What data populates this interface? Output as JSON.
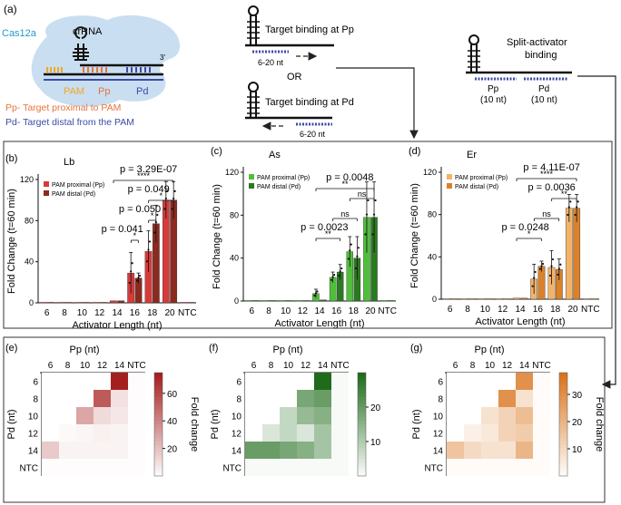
{
  "panel_a": {
    "label": "(a)",
    "cas_label": "Cas12a",
    "crrna_label": "crRNA",
    "three_prime": "3'",
    "pam": "PAM",
    "pp": "Pp",
    "pd": "Pd",
    "legend_pp": "Pp- Target proximal to PAM",
    "legend_pd": "Pd- Target distal from the PAM",
    "bind_pp": "Target binding at Pp",
    "bind_pd": "Target binding at Pd",
    "nt_range_1": "6-20 nt",
    "nt_range_2": "6-20 nt",
    "or": "OR",
    "split_title_1": "Split-activator",
    "split_title_2": "binding",
    "split_pp": "Pp",
    "split_pd": "Pd",
    "split_pp_nt": "(10 nt)",
    "split_pd_nt": "(10 nt)",
    "colors": {
      "cas": "#c9def0",
      "pam": "#f5a623",
      "pp": "#e8743b",
      "pd": "#3b4aa8",
      "arrow": "#222222"
    }
  },
  "chart_data": [
    {
      "type": "bar",
      "panel": "(b)",
      "title": "Lb",
      "ylabel": "Fold Change  (t=60 min)",
      "xlabel": "Activator Length (nt)",
      "ylim": [
        0,
        120
      ],
      "yticks": [
        0,
        40,
        80,
        120
      ],
      "categories": [
        "6",
        "8",
        "10",
        "12",
        "14",
        "16",
        "18",
        "20",
        "NTC"
      ],
      "series": [
        {
          "name": "PAM proximal (Pp)",
          "color": "#d83a3a",
          "values": [
            0.5,
            0.5,
            0.5,
            0.5,
            2,
            29,
            50,
            100,
            0.5
          ],
          "err": [
            0.5,
            0.5,
            0.5,
            0.5,
            1,
            20,
            20,
            18,
            0.5
          ]
        },
        {
          "name": "PAM distal (Pd)",
          "color": "#8c2a1f",
          "values": [
            0.5,
            0.5,
            0.5,
            0.5,
            2,
            24,
            77,
            100,
            0.5
          ],
          "err": [
            0.5,
            0.5,
            0.5,
            0.5,
            1,
            5,
            18,
            18,
            0.5
          ]
        }
      ],
      "sig": [
        {
          "text": "*",
          "from": 5,
          "to": 5,
          "level": 1
        },
        {
          "text": "p = 0.041",
          "from": 4,
          "to": 5,
          "level": 2
        },
        {
          "text": "*",
          "from": 6,
          "to": 6,
          "level": 3
        },
        {
          "text": "p = 0.050",
          "from": 5,
          "to": 6,
          "level": 4
        },
        {
          "text": "*",
          "from": 6,
          "to": 7,
          "level": 5
        },
        {
          "text": "p = 0.049",
          "from": 5,
          "to": 7,
          "level": 6
        },
        {
          "text": "****",
          "from": 4,
          "to": 7,
          "level": 7
        },
        {
          "text": "p = 3.29E-07",
          "from": 5,
          "to": 7,
          "level": 8
        }
      ]
    },
    {
      "type": "bar",
      "panel": "(c)",
      "title": "As",
      "ylabel": "Fold Change  (t=60 min)",
      "xlabel": "Activator Length (nt)",
      "ylim": [
        0,
        120
      ],
      "yticks": [
        0,
        40,
        80,
        120
      ],
      "categories": [
        "6",
        "8",
        "10",
        "12",
        "14",
        "16",
        "18",
        "20",
        "NTC"
      ],
      "series": [
        {
          "name": "PAM proximal (Pp)",
          "color": "#4fbf3a",
          "values": [
            0.5,
            0.5,
            0.5,
            0.5,
            7,
            22,
            46,
            78,
            0.5
          ],
          "err": [
            0.5,
            0.5,
            0.5,
            0.5,
            4,
            5,
            14,
            33,
            0.5
          ]
        },
        {
          "name": "PAM distal (Pd)",
          "color": "#2a7a1f",
          "values": [
            0.5,
            0.5,
            0.5,
            0.5,
            1,
            27,
            40,
            78,
            0.5
          ],
          "err": [
            0.5,
            0.5,
            0.5,
            0.5,
            1,
            7,
            20,
            33,
            0.5
          ]
        }
      ],
      "sig": [
        {
          "text": "**",
          "from": 4,
          "to": 5,
          "level": 1
        },
        {
          "text": "p = 0.0023",
          "from": 4,
          "to": 5,
          "level": 2
        },
        {
          "text": "ns",
          "from": 5,
          "to": 6,
          "level": 3
        },
        {
          "text": "ns",
          "from": 6,
          "to": 7,
          "level": 5
        },
        {
          "text": "**",
          "from": 4,
          "to": 7,
          "level": 6
        },
        {
          "text": "p = 0.0048",
          "from": 5,
          "to": 7,
          "level": 7
        }
      ]
    },
    {
      "type": "bar",
      "panel": "(d)",
      "title": "Er",
      "ylabel": "Fold Change  (t=60 min)",
      "xlabel": "Activator Length (nt)",
      "ylim": [
        0,
        120
      ],
      "yticks": [
        0,
        40,
        80,
        120
      ],
      "categories": [
        "6",
        "8",
        "10",
        "12",
        "14",
        "16",
        "18",
        "20",
        "NTC"
      ],
      "series": [
        {
          "name": "PAM proximal (Pp)",
          "color": "#f2b46b",
          "values": [
            0.5,
            0.5,
            0.5,
            0.5,
            1,
            19,
            30,
            86,
            0.5
          ],
          "err": [
            0.5,
            0.5,
            0.5,
            0.5,
            1,
            14,
            16,
            13,
            0.5
          ]
        },
        {
          "name": "PAM distal (Pd)",
          "color": "#d9822b",
          "values": [
            0.5,
            0.5,
            0.5,
            0.5,
            1,
            31,
            28,
            86,
            0.5
          ],
          "err": [
            0.5,
            0.5,
            0.5,
            0.5,
            1,
            5,
            10,
            13,
            0.5
          ]
        }
      ],
      "sig": [
        {
          "text": "*",
          "from": 4,
          "to": 5,
          "level": 1
        },
        {
          "text": "p = 0.0248",
          "from": 4,
          "to": 5,
          "level": 2
        },
        {
          "text": "ns",
          "from": 5,
          "to": 6,
          "level": 3
        },
        {
          "text": "**",
          "from": 6,
          "to": 7,
          "level": 5
        },
        {
          "text": "p = 0.0036",
          "from": 5,
          "to": 7,
          "level": 6
        },
        {
          "text": "****",
          "from": 4,
          "to": 7,
          "level": 7
        },
        {
          "text": "p = 4.11E-07",
          "from": 5,
          "to": 7,
          "level": 8
        }
      ]
    },
    {
      "type": "heatmap",
      "panel": "(e)",
      "xlabel": "Pp (nt)",
      "ylabel": "Pd (nt)",
      "x": [
        "6",
        "8",
        "10",
        "12",
        "14",
        "NTC"
      ],
      "y": [
        "6",
        "8",
        "10",
        "12",
        "14",
        "NTC"
      ],
      "colorbar": {
        "label": "Fold change",
        "ticks": [
          20,
          40,
          60
        ],
        "min": 0,
        "max": 75,
        "color": "#a4201e"
      },
      "values": [
        [
          null,
          null,
          null,
          null,
          75,
          1
        ],
        [
          null,
          null,
          null,
          55,
          10,
          1
        ],
        [
          null,
          null,
          30,
          12,
          8,
          1
        ],
        [
          null,
          2,
          3,
          5,
          4,
          1
        ],
        [
          18,
          4,
          4,
          4,
          4,
          1
        ],
        [
          1,
          1,
          1,
          1,
          1,
          1
        ]
      ]
    },
    {
      "type": "heatmap",
      "panel": "(f)",
      "xlabel": "Pp (nt)",
      "ylabel": "Pd (nt)",
      "x": [
        "6",
        "8",
        "10",
        "12",
        "14",
        "NTC"
      ],
      "y": [
        "6",
        "8",
        "10",
        "12",
        "14",
        "NTC"
      ],
      "colorbar": {
        "label": "",
        "ticks": [
          10,
          20
        ],
        "min": 0,
        "max": 30,
        "color": "#1f6b1a"
      },
      "values": [
        [
          null,
          null,
          null,
          null,
          30,
          1
        ],
        [
          null,
          null,
          null,
          18,
          20,
          1
        ],
        [
          null,
          null,
          8,
          14,
          16,
          1
        ],
        [
          null,
          5,
          8,
          5,
          12,
          1
        ],
        [
          20,
          20,
          18,
          16,
          12,
          1
        ],
        [
          1,
          1,
          1,
          1,
          1,
          1
        ]
      ]
    },
    {
      "type": "heatmap",
      "panel": "(g)",
      "xlabel": "Pp (nt)",
      "ylabel": "Pd (nt)",
      "x": [
        "6",
        "8",
        "10",
        "12",
        "14",
        "NTC"
      ],
      "y": [
        "6",
        "8",
        "10",
        "12",
        "14",
        "NTC"
      ],
      "colorbar": {
        "label": "Fold change",
        "ticks": [
          10,
          20,
          30
        ],
        "min": 0,
        "max": 38,
        "color": "#d9741b"
      },
      "values": [
        [
          null,
          null,
          null,
          null,
          30,
          1
        ],
        [
          null,
          null,
          null,
          30,
          8,
          1
        ],
        [
          null,
          null,
          8,
          12,
          18,
          1
        ],
        [
          null,
          4,
          6,
          12,
          14,
          1
        ],
        [
          16,
          10,
          8,
          8,
          20,
          1
        ],
        [
          1,
          1,
          1,
          1,
          1,
          1
        ]
      ]
    }
  ]
}
